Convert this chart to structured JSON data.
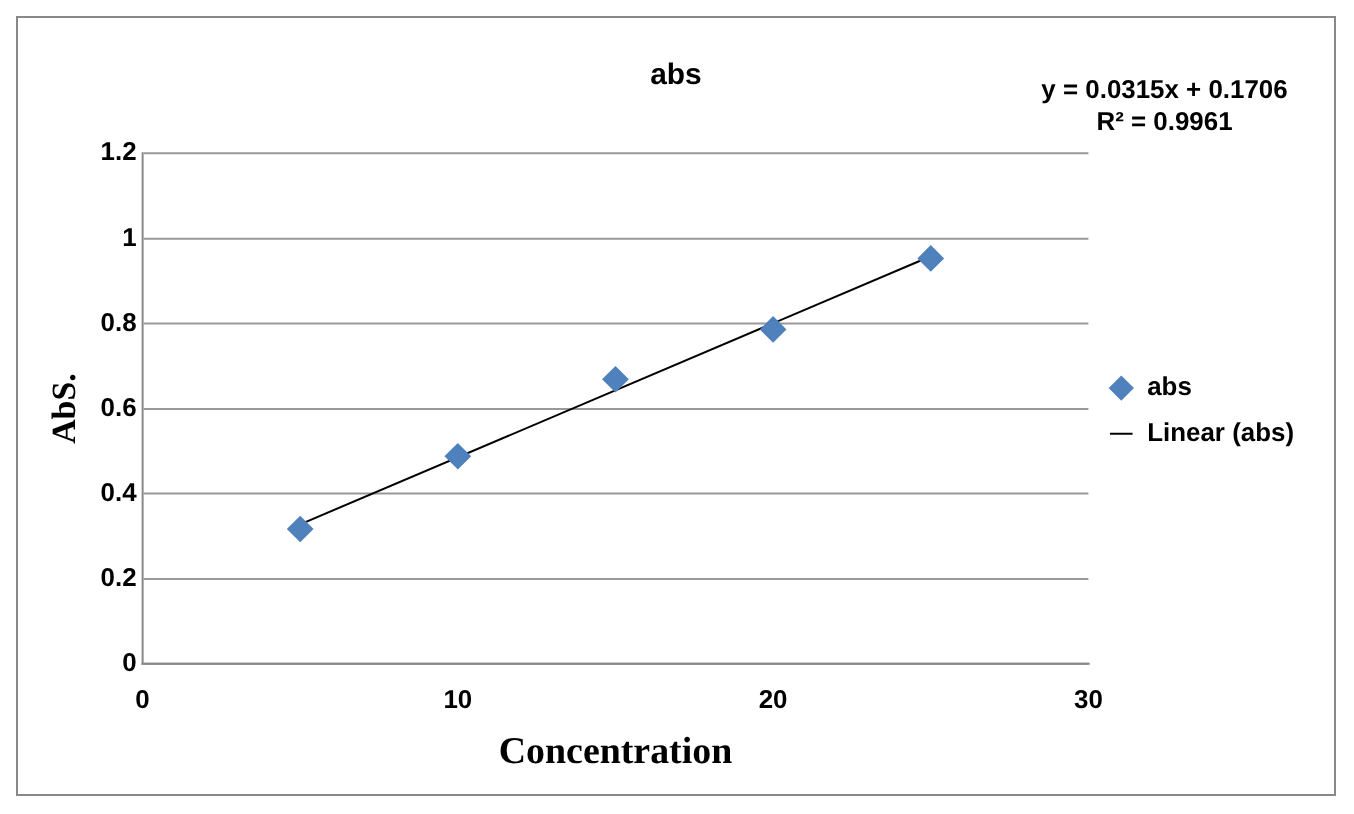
{
  "chart_data": {
    "type": "scatter",
    "title": "abs",
    "xlabel": "Concentration",
    "ylabel": "AbS.",
    "annotations": [
      "y = 0.0315x + 0.1706",
      "R² = 0.9961"
    ],
    "series": [
      {
        "name": "abs",
        "color": "#4f81bd",
        "marker": "diamond",
        "x": [
          5,
          10,
          15,
          20,
          25
        ],
        "values": [
          0.317,
          0.488,
          0.669,
          0.786,
          0.953
        ]
      },
      {
        "name": "Linear (abs)",
        "type": "line",
        "color": "#000000",
        "marker": "none",
        "line_style": "solid",
        "x": [
          5,
          25
        ],
        "values": [
          0.328,
          0.958
        ]
      }
    ],
    "xlim": [
      0,
      30
    ],
    "xticks": [
      0,
      10,
      20,
      30
    ],
    "ylim": [
      0,
      1.2
    ],
    "yticks": [
      0,
      0.2,
      0.4,
      0.6,
      0.8,
      1,
      1.2
    ],
    "grid": "y",
    "legend": "right"
  }
}
